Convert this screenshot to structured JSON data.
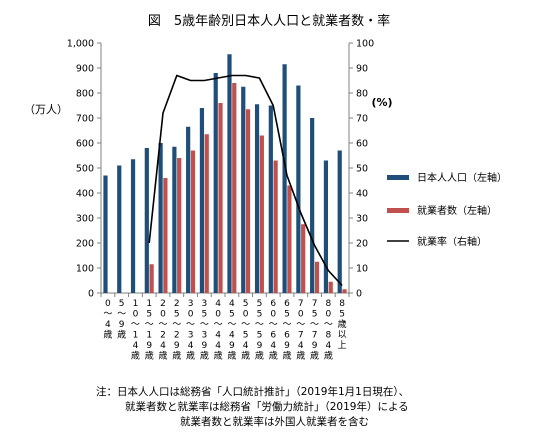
{
  "chart_data": {
    "type": "bar",
    "title": "図　5歳年齢別日本人人口と就業者数・率",
    "ylabel_left": "（万人）",
    "ylabel_right": "(%)",
    "ylim_left": [
      0,
      1000
    ],
    "ylim_right": [
      0,
      100
    ],
    "yticks_left": [
      "0",
      "100",
      "200",
      "300",
      "400",
      "500",
      "600",
      "700",
      "800",
      "900",
      "1,000"
    ],
    "yticks_right": [
      "0",
      "10",
      "20",
      "30",
      "40",
      "50",
      "60",
      "70",
      "80",
      "90",
      "100"
    ],
    "categories": [
      "0～4歳",
      "5～9歳",
      "10～14歳",
      "15～19歳",
      "20～24歳",
      "25～29歳",
      "30～34歳",
      "35～39歳",
      "40～44歳",
      "45～49歳",
      "50～54歳",
      "55～59歳",
      "60～64歳",
      "65～69歳",
      "70～74歳",
      "75～79歳",
      "80～84歳",
      "85歳以上"
    ],
    "category_lines": [
      [
        "0",
        "～",
        "4",
        "歳"
      ],
      [
        "5",
        "～",
        "9",
        "歳"
      ],
      [
        "1",
        "0",
        "～",
        "1",
        "4",
        "歳"
      ],
      [
        "1",
        "5",
        "～",
        "1",
        "9",
        "歳"
      ],
      [
        "2",
        "0",
        "～",
        "2",
        "4",
        "歳"
      ],
      [
        "2",
        "5",
        "～",
        "2",
        "9",
        "歳"
      ],
      [
        "3",
        "0",
        "～",
        "3",
        "4",
        "歳"
      ],
      [
        "3",
        "5",
        "～",
        "3",
        "9",
        "歳"
      ],
      [
        "4",
        "0",
        "～",
        "4",
        "4",
        "歳"
      ],
      [
        "4",
        "5",
        "～",
        "4",
        "9",
        "歳"
      ],
      [
        "5",
        "0",
        "～",
        "5",
        "4",
        "歳"
      ],
      [
        "5",
        "5",
        "～",
        "5",
        "9",
        "歳"
      ],
      [
        "6",
        "0",
        "～",
        "6",
        "4",
        "歳"
      ],
      [
        "6",
        "5",
        "～",
        "6",
        "9",
        "歳"
      ],
      [
        "7",
        "0",
        "～",
        "7",
        "4",
        "歳"
      ],
      [
        "7",
        "5",
        "～",
        "7",
        "9",
        "歳"
      ],
      [
        "8",
        "0",
        "～",
        "8",
        "4",
        "歳"
      ],
      [
        "8",
        "5",
        "歳",
        "以",
        "上"
      ]
    ],
    "series": [
      {
        "name": "日本人人口（左軸）",
        "type": "bar",
        "axis": "left",
        "color": "#1f4e79",
        "values": [
          470,
          510,
          535,
          580,
          600,
          585,
          665,
          740,
          880,
          955,
          825,
          755,
          750,
          915,
          830,
          700,
          530,
          570
        ]
      },
      {
        "name": "就業者数（左軸）",
        "type": "bar",
        "axis": "left",
        "color": "#c0504d",
        "values": [
          null,
          null,
          null,
          115,
          460,
          540,
          570,
          635,
          760,
          840,
          735,
          630,
          530,
          430,
          275,
          125,
          45,
          15
        ]
      },
      {
        "name": "就業率（右軸）",
        "type": "line",
        "axis": "right",
        "color": "#000000",
        "values": [
          null,
          null,
          null,
          20,
          72,
          87,
          85,
          85,
          86,
          87,
          87,
          86,
          75,
          47,
          32,
          19,
          9,
          3
        ]
      }
    ],
    "legend_position": "right",
    "grid": false
  },
  "notes": [
    "注：日本人人口は総務省「人口統計推計」（2019年1月1日現在）、",
    "就業者数と就業率は総務省「労働力統計」（2019年）による",
    "就業者数と就業率は外国人就業者を含む"
  ]
}
